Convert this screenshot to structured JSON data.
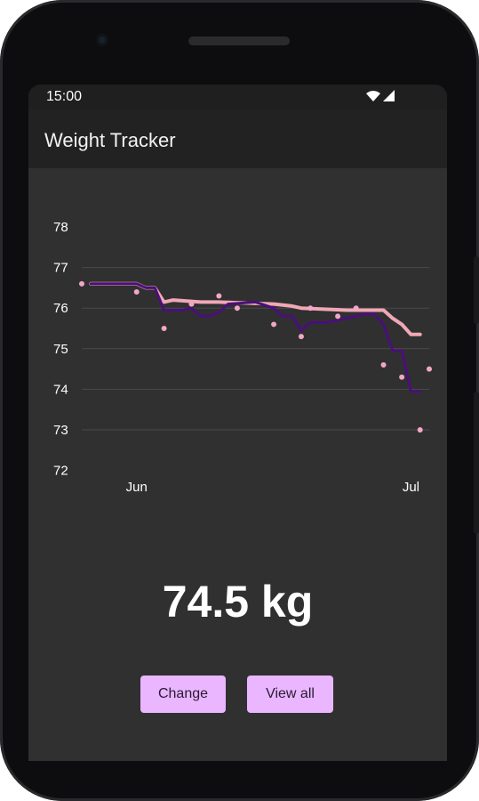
{
  "status_bar": {
    "time": "15:00"
  },
  "app": {
    "title": "Weight Tracker"
  },
  "chart_data": {
    "type": "line",
    "y_ticks": [
      "78",
      "77",
      "76",
      "75",
      "74",
      "73",
      "72"
    ],
    "x_ticks": [
      "Jun",
      "Jul"
    ],
    "ylim": [
      72,
      78
    ],
    "grid": true,
    "series": [
      {
        "type": "scatter",
        "color": "#f3a6c8",
        "x": [
          "2023-05-26",
          "2023-06-01",
          "2023-06-04",
          "2023-06-07",
          "2023-06-10",
          "2023-06-12",
          "2023-06-16",
          "2023-06-19",
          "2023-06-20",
          "2023-06-23",
          "2023-06-25",
          "2023-06-28",
          "2023-06-30",
          "2023-07-02",
          "2023-07-03"
        ],
        "values": [
          76.6,
          76.4,
          75.5,
          76.1,
          76.3,
          76.0,
          75.6,
          75.3,
          76.0,
          75.8,
          76.0,
          74.6,
          74.3,
          73.0,
          74.5
        ]
      },
      {
        "type": "line",
        "color": "#4a0f7a",
        "x": [
          "2023-05-27",
          "2023-06-01",
          "2023-06-02",
          "2023-06-03",
          "2023-06-04",
          "2023-06-06",
          "2023-06-07",
          "2023-06-08",
          "2023-06-09",
          "2023-06-10",
          "2023-06-11",
          "2023-06-14",
          "2023-06-16",
          "2023-06-17",
          "2023-06-18",
          "2023-06-19",
          "2023-06-20",
          "2023-06-21",
          "2023-06-22",
          "2023-06-24",
          "2023-06-25",
          "2023-06-26",
          "2023-06-27",
          "2023-06-28",
          "2023-06-29",
          "2023-06-30",
          "2023-07-01",
          "2023-07-02"
        ],
        "values": [
          76.6,
          76.6,
          76.5,
          76.5,
          75.95,
          75.95,
          76.0,
          75.8,
          75.8,
          75.9,
          76.1,
          76.15,
          76.0,
          75.8,
          75.8,
          75.45,
          75.65,
          75.65,
          75.65,
          75.75,
          75.8,
          75.85,
          75.85,
          75.6,
          74.95,
          74.95,
          73.95,
          73.95
        ]
      },
      {
        "type": "line",
        "color": "#f0a8b6",
        "x": [
          "2023-05-27",
          "2023-06-01",
          "2023-06-02",
          "2023-06-03",
          "2023-06-04",
          "2023-06-05",
          "2023-06-08",
          "2023-06-10",
          "2023-06-16",
          "2023-06-18",
          "2023-06-19",
          "2023-06-24",
          "2023-06-25",
          "2023-06-28",
          "2023-06-29",
          "2023-06-30",
          "2023-07-01",
          "2023-07-02"
        ],
        "values": [
          76.6,
          76.6,
          76.5,
          76.5,
          76.15,
          76.2,
          76.15,
          76.15,
          76.1,
          76.05,
          76.0,
          75.95,
          75.95,
          75.95,
          75.75,
          75.6,
          75.35,
          75.35
        ]
      }
    ]
  },
  "current_weight": "74.5 kg",
  "buttons": {
    "change_label": "Change",
    "view_all_label": "View all"
  },
  "colors": {
    "screen_bg": "#303030",
    "appbar_bg": "#222222",
    "statusbar_bg": "#1f1f1f",
    "button_bg": "#e9b6ff",
    "grid": "#4a4a4a"
  },
  "icons": [
    "wifi-icon",
    "cellular-signal-icon"
  ]
}
